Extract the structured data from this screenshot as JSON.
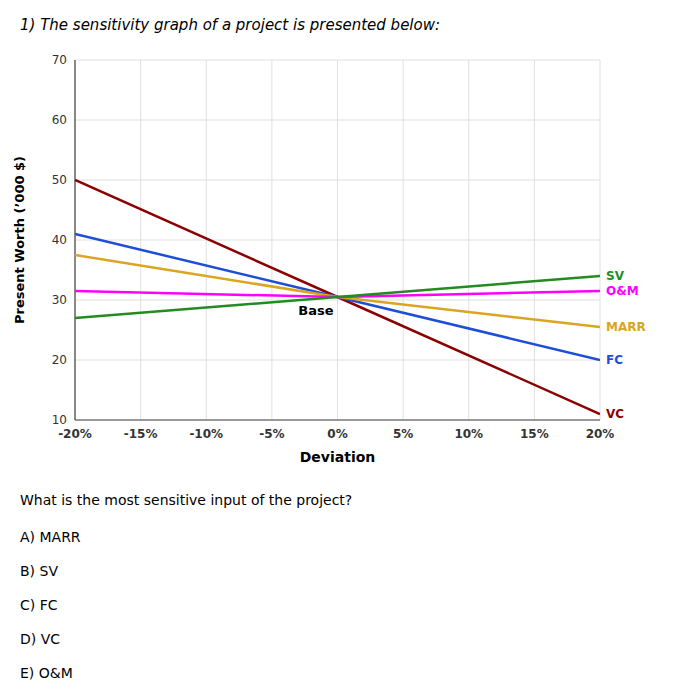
{
  "chart_data": {
    "type": "line",
    "title": "1) The sensitivity graph of a project is presented below:",
    "x_label": "Deviation",
    "y_label": "Present Worth (’000 $)",
    "x": [
      -0.2,
      0.0,
      0.2
    ],
    "xlim": [
      -0.2,
      0.2
    ],
    "xticks": [
      {
        "value": -0.2,
        "label": "-20%"
      },
      {
        "value": -0.15,
        "label": "-15%"
      },
      {
        "value": -0.1,
        "label": "-10%"
      },
      {
        "value": -0.05,
        "label": "-5%"
      },
      {
        "value": 0.0,
        "label": "0%"
      },
      {
        "value": 0.05,
        "label": "5%"
      },
      {
        "value": 0.1,
        "label": "10%"
      },
      {
        "value": 0.15,
        "label": "15%"
      },
      {
        "value": 0.2,
        "label": "20%"
      }
    ],
    "ylim": [
      10,
      70
    ],
    "yticks": [
      10,
      20,
      30,
      40,
      50,
      60,
      70
    ],
    "grid": true,
    "series": [
      {
        "name": "VC",
        "color": "#8B0000",
        "values": [
          50.0,
          30.5,
          11.0
        ]
      },
      {
        "name": "FC",
        "color": "#1E4ED8",
        "values": [
          41.0,
          30.5,
          20.0
        ]
      },
      {
        "name": "MARR",
        "color": "#DAA520",
        "values": [
          37.5,
          30.5,
          25.5
        ]
      },
      {
        "name": "O&M",
        "color": "#FF00FF",
        "values": [
          31.5,
          30.5,
          31.5
        ]
      },
      {
        "name": "SV",
        "color": "#228B22",
        "values": [
          27.0,
          30.5,
          34.0
        ]
      }
    ],
    "annotations": [
      {
        "text": "Base",
        "x": 0.0,
        "y": 30.5
      }
    ],
    "question": "What is the most sensitive input of the project?",
    "answers": [
      "A) MARR",
      "B) SV",
      "C) FC",
      "D) VC",
      "E) O&M"
    ]
  }
}
